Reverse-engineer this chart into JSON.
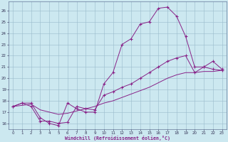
{
  "bg_color": "#cce8f0",
  "line_color": "#882288",
  "grid_color": "#99bbcc",
  "xlim": [
    -0.5,
    23.5
  ],
  "ylim": [
    15.5,
    26.8
  ],
  "xticks": [
    0,
    1,
    2,
    3,
    4,
    5,
    6,
    7,
    8,
    9,
    10,
    11,
    12,
    13,
    14,
    15,
    16,
    17,
    18,
    19,
    20,
    21,
    22,
    23
  ],
  "yticks": [
    16,
    17,
    18,
    19,
    20,
    21,
    22,
    23,
    24,
    25,
    26
  ],
  "xlabel": "Windchill (Refroidissement éolien,°C)",
  "line1_x": [
    0,
    1,
    2,
    3,
    4,
    5,
    6,
    7,
    8,
    9,
    10,
    11,
    12,
    13,
    14,
    15,
    16,
    17,
    18,
    19,
    20,
    21,
    22,
    23
  ],
  "line1_y": [
    17.5,
    17.8,
    17.8,
    16.5,
    16.0,
    15.8,
    17.8,
    17.3,
    17.0,
    17.0,
    19.5,
    20.5,
    23.0,
    23.5,
    24.8,
    25.0,
    26.2,
    26.3,
    25.5,
    23.7,
    21.0,
    21.0,
    21.5,
    20.8
  ],
  "line2_x": [
    0,
    1,
    2,
    3,
    4,
    5,
    6,
    7,
    8,
    9,
    10,
    11,
    12,
    13,
    14,
    15,
    16,
    17,
    18,
    19,
    20,
    21,
    22,
    23
  ],
  "line2_y": [
    17.5,
    17.8,
    17.5,
    16.2,
    16.2,
    16.0,
    16.1,
    17.5,
    17.3,
    17.2,
    18.5,
    18.8,
    19.2,
    19.5,
    20.0,
    20.5,
    21.0,
    21.5,
    21.8,
    22.0,
    20.5,
    21.0,
    20.8,
    20.7
  ],
  "line3_x": [
    0,
    1,
    2,
    3,
    4,
    5,
    6,
    7,
    8,
    9,
    10,
    11,
    12,
    13,
    14,
    15,
    16,
    17,
    18,
    19,
    20,
    21,
    22,
    23
  ],
  "line3_y": [
    17.5,
    17.6,
    17.7,
    17.2,
    17.0,
    16.8,
    16.9,
    17.1,
    17.3,
    17.5,
    17.8,
    18.0,
    18.3,
    18.6,
    18.9,
    19.2,
    19.6,
    20.0,
    20.3,
    20.5,
    20.5,
    20.6,
    20.6,
    20.7
  ]
}
